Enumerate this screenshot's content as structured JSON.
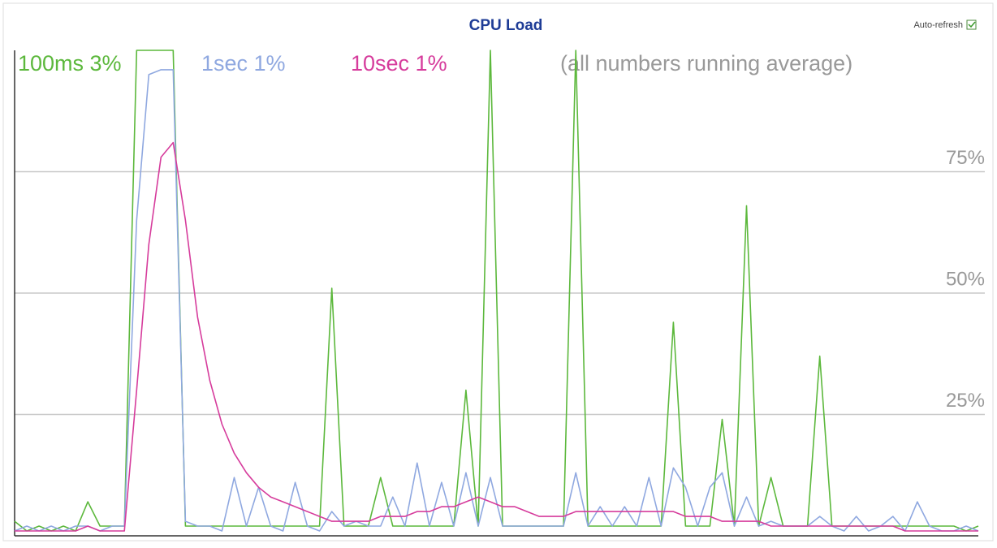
{
  "chart_data": {
    "type": "line",
    "title": "CPU Load",
    "auto_refresh": "Auto-refresh",
    "annotation": "(all numbers running average)",
    "categories": [
      null,
      null,
      null,
      null,
      null,
      null,
      null,
      null,
      null,
      null,
      null,
      null,
      null,
      null,
      null,
      null,
      null,
      null,
      null,
      null,
      null,
      null,
      null,
      null,
      null,
      null,
      null,
      null,
      null,
      null,
      null,
      null,
      null,
      null,
      null,
      null,
      null,
      null,
      null,
      null,
      null,
      null,
      null,
      null,
      null,
      null,
      null,
      null,
      null,
      null,
      null,
      null,
      null,
      null,
      null,
      null,
      null,
      null,
      null,
      null,
      null,
      null,
      null,
      null,
      null,
      null,
      null,
      null,
      null,
      null,
      null,
      null,
      null,
      null,
      null,
      null,
      null,
      null,
      null,
      null
    ],
    "ylim": [
      0,
      100
    ],
    "yticks": [
      {
        "value": 25,
        "label": "25%"
      },
      {
        "value": 50,
        "label": "50%"
      },
      {
        "value": 75,
        "label": "75%"
      }
    ],
    "grid": true,
    "series": [
      {
        "name": "100ms 3%",
        "color": "#5cb83c",
        "values": [
          3,
          1,
          2,
          1,
          2,
          1,
          7,
          2,
          2,
          2,
          100,
          100,
          100,
          100,
          2,
          2,
          2,
          2,
          2,
          2,
          2,
          2,
          2,
          2,
          2,
          2,
          51,
          2,
          2,
          2,
          12,
          2,
          2,
          2,
          2,
          2,
          2,
          30,
          2,
          100,
          2,
          2,
          2,
          2,
          2,
          2,
          100,
          2,
          2,
          2,
          2,
          2,
          2,
          2,
          44,
          2,
          2,
          2,
          24,
          2,
          68,
          2,
          12,
          2,
          2,
          2,
          37,
          2,
          2,
          2,
          2,
          2,
          2,
          2,
          2,
          2,
          2,
          2,
          1,
          2
        ]
      },
      {
        "name": "1sec 1%",
        "color": "#8fa8e0",
        "values": [
          1,
          2,
          1,
          2,
          1,
          2,
          2,
          1,
          2,
          2,
          65,
          95,
          96,
          96,
          3,
          2,
          2,
          1,
          12,
          2,
          10,
          2,
          1,
          11,
          2,
          1,
          5,
          2,
          3,
          2,
          2,
          8,
          2,
          15,
          2,
          11,
          2,
          13,
          2,
          12,
          2,
          2,
          2,
          2,
          2,
          2,
          13,
          2,
          6,
          2,
          6,
          2,
          12,
          2,
          14,
          10,
          2,
          10,
          13,
          2,
          8,
          2,
          3,
          2,
          2,
          2,
          4,
          2,
          1,
          4,
          1,
          2,
          4,
          1,
          7,
          2,
          1,
          1,
          2,
          1
        ]
      },
      {
        "name": "10sec 1%",
        "color": "#d63c9c",
        "values": [
          1,
          1,
          1,
          1,
          1,
          1,
          2,
          1,
          1,
          1,
          30,
          60,
          78,
          81,
          65,
          45,
          32,
          23,
          17,
          13,
          10,
          8,
          7,
          6,
          5,
          4,
          3,
          3,
          3,
          3,
          4,
          4,
          4,
          5,
          5,
          6,
          6,
          7,
          8,
          7,
          6,
          6,
          5,
          4,
          4,
          4,
          5,
          5,
          5,
          5,
          5,
          5,
          5,
          5,
          5,
          4,
          4,
          4,
          3,
          3,
          3,
          3,
          2,
          2,
          2,
          2,
          2,
          2,
          2,
          2,
          2,
          2,
          2,
          1,
          1,
          1,
          1,
          1,
          1,
          1
        ]
      }
    ]
  }
}
